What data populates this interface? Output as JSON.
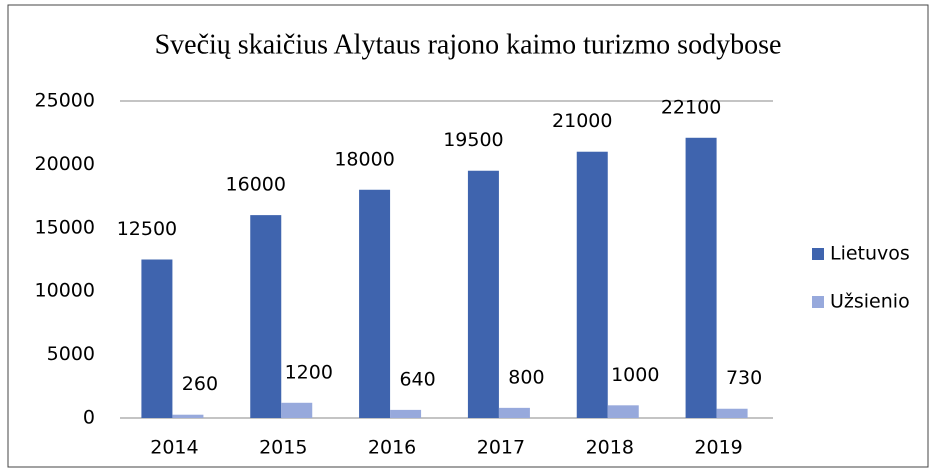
{
  "chart_data": {
    "type": "bar",
    "title": "Svečių skaičius Alytaus rajono kaimo turizmo sodybose",
    "categories": [
      "2014",
      "2015",
      "2016",
      "2017",
      "2018",
      "2019"
    ],
    "series": [
      {
        "name": "Lietuvos",
        "color": "#3f64ae",
        "values": [
          12500,
          16000,
          18000,
          19500,
          21000,
          22100
        ]
      },
      {
        "name": "Užsienio",
        "color": "#97a9dc",
        "values": [
          260,
          1200,
          640,
          800,
          1000,
          730
        ]
      }
    ],
    "ylim": [
      0,
      25000
    ],
    "yticks": [
      0,
      5000,
      10000,
      15000,
      20000,
      25000
    ],
    "grid": false,
    "legend": "right"
  }
}
